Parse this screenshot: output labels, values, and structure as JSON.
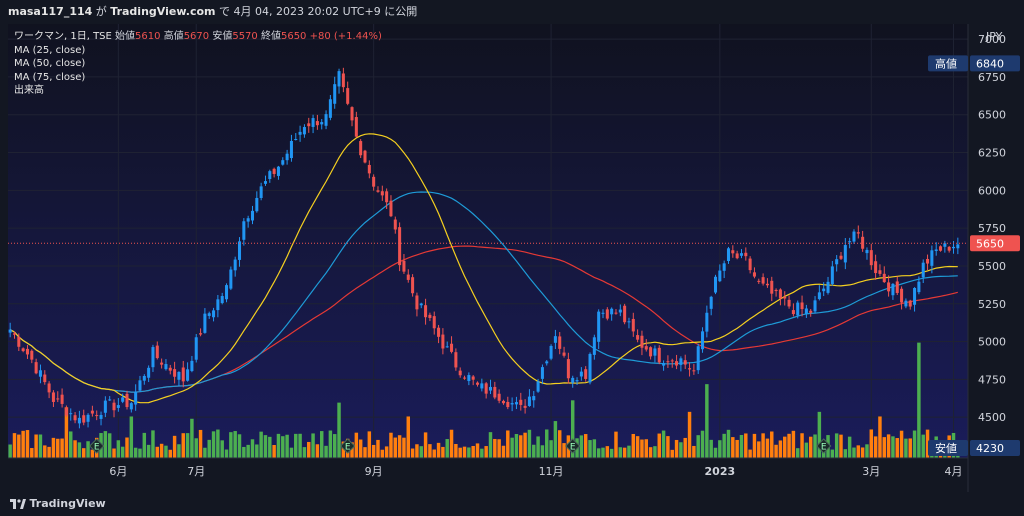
{
  "header": {
    "user": "masa117_114",
    "mid": " が ",
    "site": "TradingView.com",
    "rest": " で 4月 04, 2023 20:02 UTC+9 に公開"
  },
  "legend": {
    "symbol": "ワークマン, 1日, TSE",
    "open_label": "始値",
    "open": "5610",
    "high_label": "高値",
    "high": "5670",
    "low_label": "安値",
    "low": "5570",
    "close_label": "終値",
    "close": "5650",
    "change": "+80 (+1.44%)",
    "ma25": "MA (25, close)",
    "ma50": "MA (50, close)",
    "ma75": "MA (75, close)",
    "volume": "出来高"
  },
  "footer": {
    "brand": "TradingView"
  },
  "colors": {
    "background": "#131722",
    "up": "#2196f3",
    "down": "#ef5350",
    "vol_up": "#4caf50",
    "vol_down": "#ff7f0e",
    "ma25": "#f5d020",
    "ma50": "#1e9bd7",
    "ma75": "#e53935"
  },
  "chart_data": {
    "type": "candlestick",
    "currency": "JPY",
    "ylim": [
      4230,
      7100
    ],
    "y_ticks": [
      4500,
      4750,
      5000,
      5250,
      5500,
      5750,
      6000,
      6250,
      6500,
      6750,
      7000
    ],
    "x_ticks": [
      {
        "label": "6月",
        "index": 25
      },
      {
        "label": "7月",
        "index": 43
      },
      {
        "label": "9月",
        "index": 84
      },
      {
        "label": "11月",
        "index": 125
      },
      {
        "label": "2023",
        "index": 164
      },
      {
        "label": "3月",
        "index": 199
      },
      {
        "label": "4月",
        "index": 218
      }
    ],
    "high_badge": {
      "label": "高値",
      "value": 6840
    },
    "low_badge": {
      "label": "安値",
      "value": 4230
    },
    "last_price": 5650,
    "earnings_markers": [
      20,
      78,
      130,
      188
    ],
    "close_anchors": [
      [
        0,
        5080
      ],
      [
        5,
        4880
      ],
      [
        10,
        4620
      ],
      [
        16,
        4480
      ],
      [
        22,
        4570
      ],
      [
        28,
        4600
      ],
      [
        33,
        4920
      ],
      [
        40,
        4750
      ],
      [
        45,
        5150
      ],
      [
        50,
        5350
      ],
      [
        54,
        5800
      ],
      [
        58,
        6010
      ],
      [
        63,
        6200
      ],
      [
        68,
        6440
      ],
      [
        73,
        6480
      ],
      [
        76,
        6750
      ],
      [
        80,
        6350
      ],
      [
        84,
        6050
      ],
      [
        88,
        5850
      ],
      [
        90,
        5550
      ],
      [
        94,
        5250
      ],
      [
        98,
        5080
      ],
      [
        103,
        4850
      ],
      [
        108,
        4700
      ],
      [
        113,
        4650
      ],
      [
        118,
        4550
      ],
      [
        121,
        4680
      ],
      [
        126,
        5060
      ],
      [
        129,
        4790
      ],
      [
        133,
        4790
      ],
      [
        136,
        5200
      ],
      [
        141,
        5190
      ],
      [
        145,
        5000
      ],
      [
        150,
        4900
      ],
      [
        155,
        4880
      ],
      [
        158,
        4800
      ],
      [
        162,
        5330
      ],
      [
        166,
        5580
      ],
      [
        170,
        5530
      ],
      [
        173,
        5380
      ],
      [
        177,
        5290
      ],
      [
        181,
        5220
      ],
      [
        185,
        5200
      ],
      [
        189,
        5400
      ],
      [
        193,
        5650
      ],
      [
        196,
        5700
      ],
      [
        200,
        5480
      ],
      [
        204,
        5340
      ],
      [
        208,
        5260
      ],
      [
        211,
        5500
      ],
      [
        214,
        5600
      ],
      [
        219,
        5650
      ]
    ],
    "volume_spikes": [
      [
        13,
        2.2
      ],
      [
        28,
        1.8
      ],
      [
        42,
        1.7
      ],
      [
        76,
        2.4
      ],
      [
        92,
        1.8
      ],
      [
        126,
        1.6
      ],
      [
        130,
        2.5
      ],
      [
        157,
        2.0
      ],
      [
        161,
        3.2
      ],
      [
        187,
        2.0
      ],
      [
        201,
        1.8
      ],
      [
        210,
        5.0
      ]
    ],
    "volume_scale_max": 5.2,
    "bars_total": 220
  }
}
